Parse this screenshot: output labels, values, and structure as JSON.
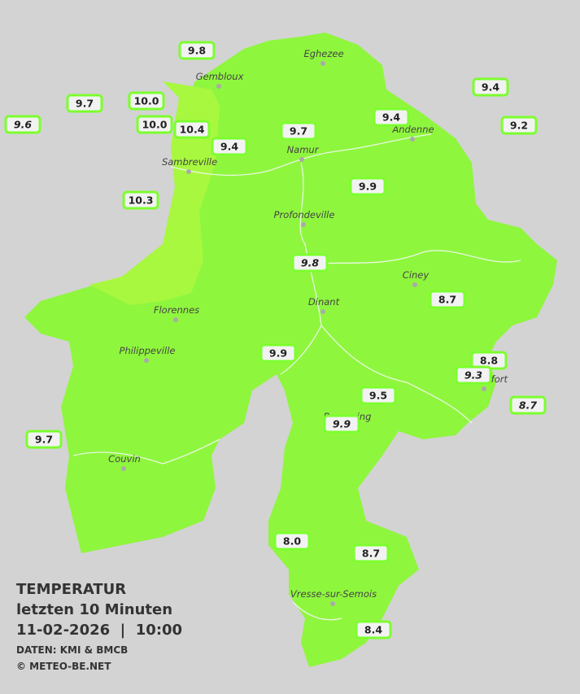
{
  "legend": {
    "title": "TEMPERATUR",
    "subtitle": "letzten 10 Minuten",
    "timestamp": "11-02-2026  |  10:00",
    "source": "DATEN: KMI & BMCB",
    "copyright": "© METEO-BE.NET"
  },
  "cities": [
    "Eghezee",
    "Gembloux",
    "Andenne",
    "Namur",
    "Sambreville",
    "Profondeville",
    "Ciney",
    "Dinant",
    "Florennes",
    "Philippeville",
    "Rochefort",
    "Beauraing",
    "Couvin",
    "Vresse-sur-Semois"
  ],
  "stations": [
    {
      "value": "9.8"
    },
    {
      "value": "9.7"
    },
    {
      "value": "10.0"
    },
    {
      "value": "9.6",
      "italic": true
    },
    {
      "value": "10.0"
    },
    {
      "value": "10.4"
    },
    {
      "value": "9.4"
    },
    {
      "value": "9.7"
    },
    {
      "value": "9.4"
    },
    {
      "value": "9.4"
    },
    {
      "value": "9.2"
    },
    {
      "value": "9.9"
    },
    {
      "value": "10.3"
    },
    {
      "value": "9.8",
      "italic": true
    },
    {
      "value": "8.7"
    },
    {
      "value": "9.9"
    },
    {
      "value": "8.8"
    },
    {
      "value": "9.3",
      "italic": true
    },
    {
      "value": "9.5"
    },
    {
      "value": "8.7",
      "italic": true
    },
    {
      "value": "9.9",
      "italic": true
    },
    {
      "value": "9.7"
    },
    {
      "value": "8.0"
    },
    {
      "value": "8.7"
    },
    {
      "value": "8.4"
    }
  ]
}
